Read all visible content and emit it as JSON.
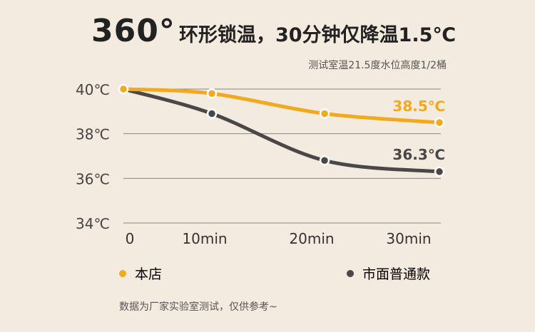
{
  "title_main": "360°",
  "title_rest": "环形锁温，30分钟仅降温1.5℃",
  "subtitle": "测试室温21.5度水位高度1/2桶",
  "footnote": "数据为厂家实验室测试，仅供参考~",
  "colors": {
    "ours": "#f2a91e",
    "market": "#4a4748",
    "grid": "#8a8380"
  },
  "chart_data": {
    "type": "line",
    "categories": [
      "0",
      "10min",
      "20min",
      "30min"
    ],
    "x": [
      0,
      10,
      20,
      30
    ],
    "y_ticks": [
      "40℃",
      "38℃",
      "36℃",
      "34℃"
    ],
    "y_tick_values": [
      40,
      38,
      36,
      34
    ],
    "ylim": [
      34,
      40
    ],
    "grid": true,
    "legend_position": "bottom",
    "series": [
      {
        "name": "本店",
        "values": [
          40,
          39.8,
          38.9,
          38.5
        ],
        "end_label": "38.5℃"
      },
      {
        "name": "市面普通款",
        "values": [
          40,
          38.9,
          36.8,
          36.3
        ],
        "end_label": "36.3℃"
      }
    ]
  }
}
